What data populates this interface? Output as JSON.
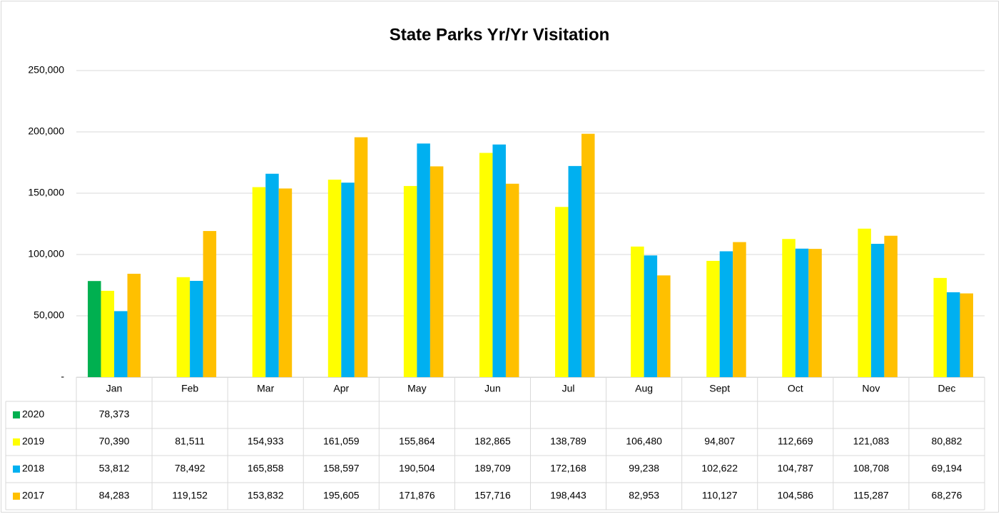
{
  "chart_data": {
    "type": "bar",
    "title": "State Parks Yr/Yr Visitation",
    "categories": [
      "Jan",
      "Feb",
      "Mar",
      "Apr",
      "May",
      "Jun",
      "Jul",
      "Aug",
      "Sept",
      "Oct",
      "Nov",
      "Dec"
    ],
    "series": [
      {
        "name": "2020",
        "color": "#00b050",
        "values": [
          78373,
          null,
          null,
          null,
          null,
          null,
          null,
          null,
          null,
          null,
          null,
          null
        ],
        "value_labels": [
          "78,373",
          null,
          null,
          null,
          null,
          null,
          null,
          null,
          null,
          null,
          null,
          null
        ]
      },
      {
        "name": "2019",
        "color": "#ffff00",
        "values": [
          70390,
          81511,
          154933,
          161059,
          155864,
          182865,
          138789,
          106480,
          94807,
          112669,
          121083,
          80882
        ],
        "value_labels": [
          "70,390",
          "81,511",
          "154,933",
          "161,059",
          "155,864",
          "182,865",
          "138,789",
          "106,480",
          "94,807",
          "112,669",
          "121,083",
          "80,882"
        ]
      },
      {
        "name": "2018",
        "color": "#00b0f0",
        "values": [
          53812,
          78492,
          165858,
          158597,
          190504,
          189709,
          172168,
          99238,
          102622,
          104787,
          108708,
          69194
        ],
        "value_labels": [
          "53,812",
          "78,492",
          "165,858",
          "158,597",
          "190,504",
          "189,709",
          "172,168",
          "99,238",
          "102,622",
          "104,787",
          "108,708",
          "69,194"
        ]
      },
      {
        "name": "2017",
        "color": "#ffc000",
        "values": [
          84283,
          119152,
          153832,
          195605,
          171876,
          157716,
          198443,
          82953,
          110127,
          104586,
          115287,
          68276
        ],
        "value_labels": [
          "84,283",
          "119,152",
          "153,832",
          "195,605",
          "171,876",
          "157,716",
          "198,443",
          "82,953",
          "110,127",
          "104,586",
          "115,287",
          "68,276"
        ]
      }
    ],
    "ylim": [
      0,
      250000
    ],
    "yticks": [
      {
        "value": 0,
        "label": "-"
      },
      {
        "value": 50000,
        "label": "50,000"
      },
      {
        "value": 100000,
        "label": "100,000"
      },
      {
        "value": 150000,
        "label": "150,000"
      },
      {
        "value": 200000,
        "label": "200,000"
      },
      {
        "value": 250000,
        "label": "250,000"
      }
    ],
    "grid": true
  }
}
